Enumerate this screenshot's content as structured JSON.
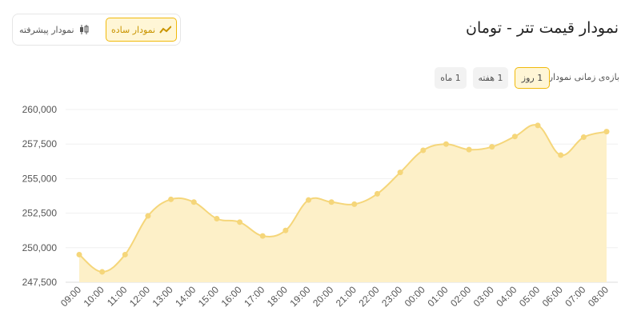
{
  "header": {
    "title": "نمودار قیمت تتر - تومان"
  },
  "toggle": {
    "simple": "نمودار ساده",
    "advanced": "نمودار پیشرفته"
  },
  "period": {
    "label": "بازه‌ی زمانی نمودار",
    "options": [
      "1 ماه",
      "1 هفته",
      "1 روز"
    ]
  },
  "chart_data": {
    "type": "line",
    "categories": [
      "09:00",
      "10:00",
      "11:00",
      "12:00",
      "13:00",
      "14:00",
      "15:00",
      "16:00",
      "17:00",
      "18:00",
      "19:00",
      "20:00",
      "21:00",
      "22:00",
      "23:00",
      "00:00",
      "01:00",
      "02:00",
      "03:00",
      "04:00",
      "05:00",
      "06:00",
      "07:00",
      "08:00"
    ],
    "values": [
      249500,
      248250,
      249500,
      252300,
      253500,
      253300,
      252100,
      251850,
      250850,
      251250,
      253450,
      253300,
      253150,
      253900,
      255450,
      257050,
      257500,
      257100,
      257300,
      258050,
      258850,
      256700,
      258000,
      258400
    ],
    "color": "#f5d67a",
    "ylim": [
      247500,
      260000
    ],
    "yticks": [
      {
        "value": 247500,
        "label": "247,500"
      },
      {
        "value": 250000,
        "label": "250,000"
      },
      {
        "value": 252500,
        "label": "252,500"
      },
      {
        "value": 255000,
        "label": "255,000"
      },
      {
        "value": 257500,
        "label": "257,500"
      },
      {
        "value": 260000,
        "label": "260,000"
      }
    ],
    "grid": true
  }
}
